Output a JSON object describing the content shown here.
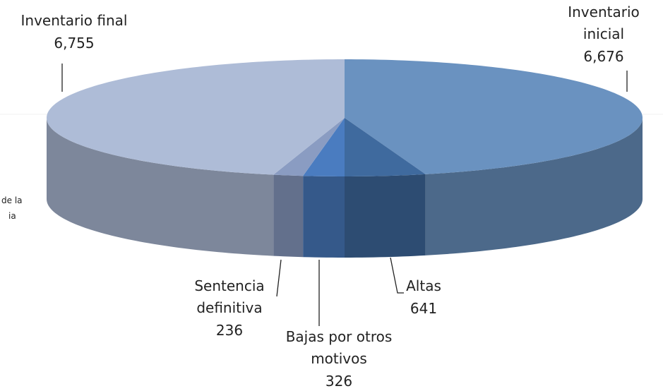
{
  "chart_data": {
    "type": "pie3d",
    "categories": [
      "Inventario inicial",
      "Altas",
      "Bajas por otros motivos",
      "Sentencia definitiva",
      "Inventario final"
    ],
    "values": [
      6676,
      641,
      326,
      236,
      6755
    ],
    "value_labels": [
      "6,676",
      "641",
      "326",
      "236",
      "6,755"
    ],
    "colors": [
      "#6a92c0",
      "#3f6a9e",
      "#4a7cc0",
      "#8a9cc2",
      "#aebcd7"
    ],
    "cropped_text": [
      "de la",
      "ia"
    ]
  }
}
